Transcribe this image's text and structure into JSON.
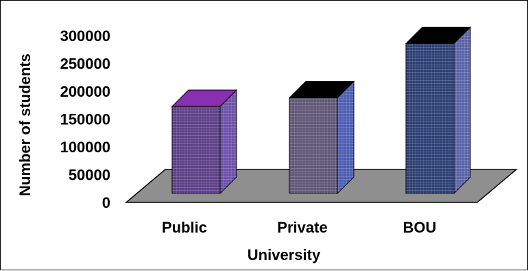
{
  "chart_data": {
    "type": "bar",
    "three_d": true,
    "categories": [
      "Public",
      "Private",
      "BOU"
    ],
    "values": [
      173000,
      190000,
      298000
    ],
    "xlabel": "University",
    "ylabel": "Number of students",
    "ylim": [
      0,
      300000
    ],
    "yticks": [
      "0",
      "50000",
      "100000",
      "150000",
      "200000",
      "250000",
      "300000"
    ],
    "grid": false,
    "legend": "none",
    "bar_colors": [
      {
        "front": "#5b3f86",
        "top": "#8a2fb0",
        "side": "#6b4fa8"
      },
      {
        "front": "#5e5674",
        "top": "#000000",
        "side": "#4d5db0"
      },
      {
        "front": "#2b3f73",
        "top": "#000000",
        "side": "#5a63a8"
      }
    ],
    "floor_color": "#8f8f8f"
  }
}
